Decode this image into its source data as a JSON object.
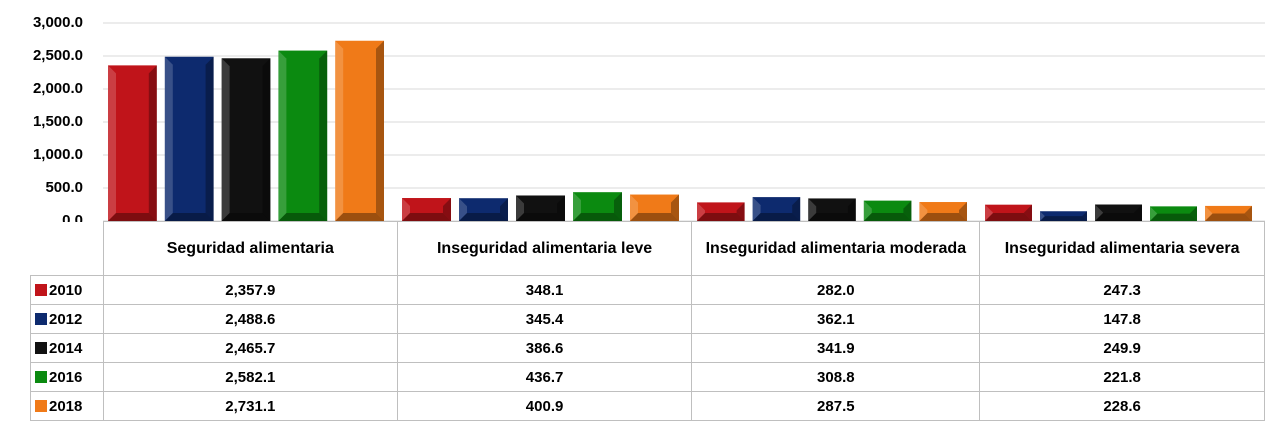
{
  "chart_data": {
    "type": "bar",
    "categories": [
      "Seguridad alimentaria",
      "Inseguridad alimentaria leve",
      "Inseguridad alimentaria moderada",
      "Inseguridad alimentaria severa"
    ],
    "series": [
      {
        "name": "2010",
        "color": "#c0141a",
        "values": [
          2357.9,
          348.1,
          282.0,
          247.3
        ],
        "value_labels": [
          "2,357.9",
          "348.1",
          "282.0",
          "247.3"
        ]
      },
      {
        "name": "2012",
        "color": "#0d2a6e",
        "values": [
          2488.6,
          345.4,
          362.1,
          147.8
        ],
        "value_labels": [
          "2,488.6",
          "345.4",
          "362.1",
          "147.8"
        ]
      },
      {
        "name": "2014",
        "color": "#111111",
        "values": [
          2465.7,
          386.6,
          341.9,
          249.9
        ],
        "value_labels": [
          "2,465.7",
          "386.6",
          "341.9",
          "249.9"
        ]
      },
      {
        "name": "2016",
        "color": "#0b8a10",
        "values": [
          2582.1,
          436.7,
          308.8,
          221.8
        ],
        "value_labels": [
          "2,582.1",
          "436.7",
          "308.8",
          "221.8"
        ]
      },
      {
        "name": "2018",
        "color": "#f07a18",
        "values": [
          2731.1,
          400.9,
          287.5,
          228.6
        ],
        "value_labels": [
          "2,731.1",
          "400.9",
          "287.5",
          "228.6"
        ]
      }
    ],
    "ylim": [
      0,
      3000
    ],
    "yticks": [
      {
        "value": 0,
        "label": "0.0"
      },
      {
        "value": 500,
        "label": "500.0"
      },
      {
        "value": 1000,
        "label": "1,000.0"
      },
      {
        "value": 1500,
        "label": "1,500.0"
      },
      {
        "value": 2000,
        "label": "2,000.0"
      },
      {
        "value": 2500,
        "label": "2,500.0"
      },
      {
        "value": 3000,
        "label": "3,000.0"
      }
    ],
    "grid": true
  }
}
